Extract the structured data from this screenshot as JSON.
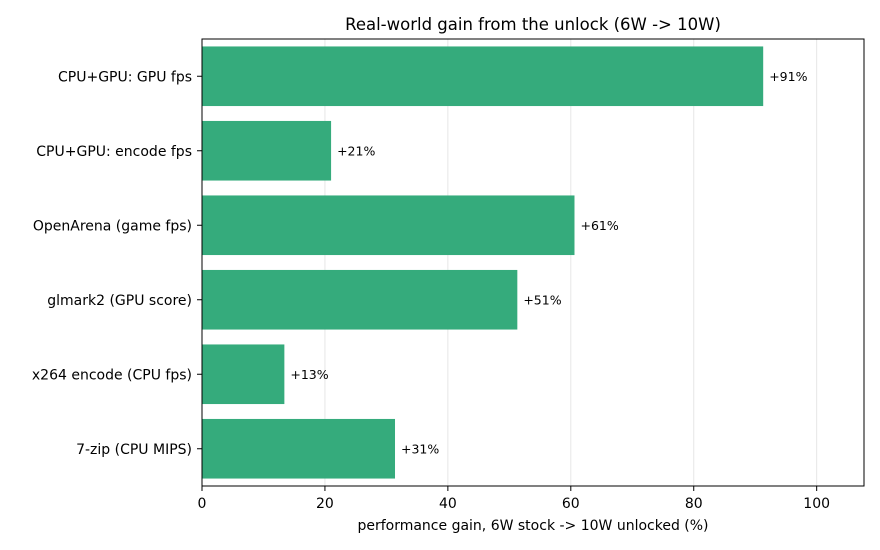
{
  "chart_data": {
    "type": "bar",
    "orientation": "horizontal",
    "title": "Real-world gain from the unlock (6W -> 10W)",
    "xlabel": "performance gain, 6W stock -> 10W unlocked (%)",
    "ylabel": "",
    "categories": [
      "CPU+GPU: GPU fps",
      "CPU+GPU: encode fps",
      "OpenArena (game fps)",
      "glmark2 (GPU score)",
      "x264 encode (CPU fps)",
      "7-zip (CPU MIPS)"
    ],
    "values": [
      91.3,
      21.0,
      60.6,
      51.3,
      13.4,
      31.4
    ],
    "data_labels": [
      "+91%",
      "+21%",
      "+61%",
      "+51%",
      "+13%",
      "+31%"
    ],
    "xlim": [
      0,
      107.7
    ],
    "xticks": [
      0,
      20,
      40,
      60,
      80,
      100
    ],
    "xtick_labels": [
      "0",
      "20",
      "40",
      "60",
      "80",
      "100"
    ],
    "grid": "vertical",
    "bar_color": "#35ab7c",
    "legend": "none"
  }
}
